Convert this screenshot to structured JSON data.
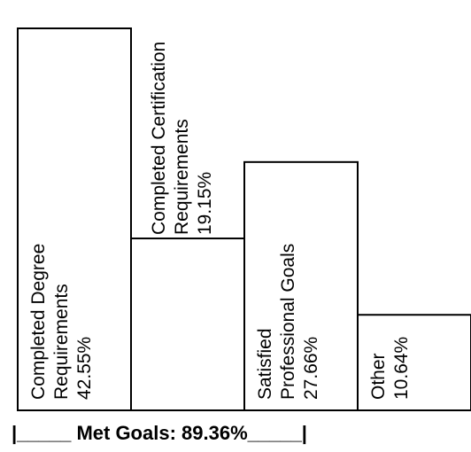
{
  "chart_data": {
    "type": "bar",
    "categories": [
      "Completed Degree Requirements",
      "Completed Certification Requirements",
      "Satisfied Professional Goals",
      "Other"
    ],
    "values": [
      42.55,
      19.15,
      27.66,
      10.64
    ],
    "unit": "%",
    "ylim": [
      0,
      42.55
    ],
    "grid": false,
    "legend": "none",
    "bar_labels": [
      [
        "Completed Degree",
        "Requirements",
        "42.55%"
      ],
      [
        "Completed Certification",
        "Requirements",
        "19.15%"
      ],
      [
        "Satisfied",
        "Professional Goals",
        "27.66%"
      ],
      [
        "Other",
        "10.64%"
      ]
    ],
    "footer": "|_____ Met Goals: 89.36%_____|",
    "colors": {
      "bar_fill": "#ffffff",
      "bar_stroke": "#000000",
      "text": "#000000"
    }
  }
}
